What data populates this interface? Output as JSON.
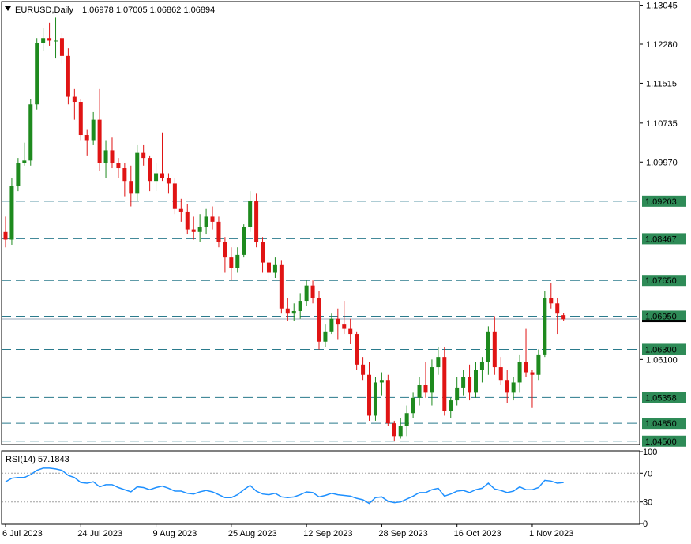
{
  "header": {
    "symbol_info": "EURUSD,Daily",
    "ohlc": "1.06978 1.07005 1.06862 1.06894"
  },
  "rsi_header": {
    "label": "RSI(14) 57.1843"
  },
  "colors": {
    "bull": "#1e8a1e",
    "bear": "#e01414",
    "level_line": "#2a7a8c",
    "level_label_bg": "#2e8b57",
    "price_label_bg": "#000000",
    "rsi_line": "#1e90ff",
    "grid_level": "#a0a0a0"
  },
  "chart_data": [
    {
      "type": "candlestick",
      "symbol": "EURUSD",
      "timeframe": "Daily",
      "ylim": [
        1.0445,
        1.131
      ],
      "y_ticks": [
        "1.13045",
        "1.12280",
        "1.11515",
        "1.10735",
        "1.09970",
        "1.06100"
      ],
      "x_tick_labels": [
        {
          "index": 0,
          "label": "6 Jul 2023"
        },
        {
          "index": 12,
          "label": "24 Jul 2023"
        },
        {
          "index": 24,
          "label": "9 Aug 2023"
        },
        {
          "index": 36,
          "label": "25 Aug 2023"
        },
        {
          "index": 48,
          "label": "12 Sep 2023"
        },
        {
          "index": 60,
          "label": "28 Sep 2023"
        },
        {
          "index": 72,
          "label": "16 Oct 2023"
        },
        {
          "index": 84,
          "label": "1 Nov 2023"
        }
      ],
      "horizontal_levels": [
        {
          "value": 1.09203,
          "label": "1.09203"
        },
        {
          "value": 1.08467,
          "label": "1.08467"
        },
        {
          "value": 1.0765,
          "label": "1.07650"
        },
        {
          "value": 1.0695,
          "label": "1.06950"
        },
        {
          "value": 1.063,
          "label": "1.06300"
        },
        {
          "value": 1.05358,
          "label": "1.05358"
        },
        {
          "value": 1.0485,
          "label": "1.04850"
        },
        {
          "value": 1.045,
          "label": "1.04500"
        }
      ],
      "current_price": {
        "value": 1.06894
      },
      "candles": [
        [
          1.086,
          1.089,
          1.083,
          1.0845
        ],
        [
          1.0845,
          1.0965,
          1.0835,
          1.095
        ],
        [
          1.095,
          1.1005,
          1.094,
          1.0995
        ],
        [
          1.0995,
          1.1035,
          1.099,
          1.1
        ],
        [
          1.1,
          1.112,
          1.099,
          1.111
        ],
        [
          1.111,
          1.124,
          1.11,
          1.123
        ],
        [
          1.123,
          1.126,
          1.1215,
          1.124
        ],
        [
          1.124,
          1.127,
          1.1225,
          1.1235
        ],
        [
          1.1235,
          1.128,
          1.12,
          1.1235
        ],
        [
          1.124,
          1.125,
          1.119,
          1.1205
        ],
        [
          1.1205,
          1.122,
          1.111,
          1.1125
        ],
        [
          1.1125,
          1.114,
          1.108,
          1.1115
        ],
        [
          1.1115,
          1.112,
          1.104,
          1.105
        ],
        [
          1.105,
          1.106,
          1.101,
          1.104
        ],
        [
          1.104,
          1.1095,
          1.103,
          1.108
        ],
        [
          1.108,
          1.114,
          1.098,
          1.0995
        ],
        [
          1.0995,
          1.104,
          1.0965,
          1.102
        ],
        [
          1.102,
          1.1045,
          1.0985,
          1.0995
        ],
        [
          1.0995,
          1.1005,
          1.0965,
          1.0985
        ],
        [
          1.0985,
          1.0995,
          1.093,
          1.096
        ],
        [
          1.096,
          1.099,
          1.091,
          1.0935
        ],
        [
          1.0935,
          1.103,
          1.092,
          1.1015
        ],
        [
          1.1015,
          1.103,
          1.099,
          1.1005
        ],
        [
          1.1005,
          1.101,
          1.094,
          1.096
        ],
        [
          1.096,
          1.0995,
          1.094,
          1.0975
        ],
        [
          1.0975,
          1.1055,
          1.096,
          1.0965
        ],
        [
          1.0965,
          1.0975,
          1.0935,
          1.0955
        ],
        [
          1.0955,
          1.0965,
          1.0895,
          1.0905
        ],
        [
          1.0905,
          1.0925,
          1.088,
          1.09
        ],
        [
          1.09,
          1.0915,
          1.0855,
          1.0865
        ],
        [
          1.0865,
          1.089,
          1.0845,
          1.086
        ],
        [
          1.086,
          1.0895,
          1.084,
          1.087
        ],
        [
          1.087,
          1.0905,
          1.0855,
          1.089
        ],
        [
          1.089,
          1.091,
          1.0865,
          1.088
        ],
        [
          1.088,
          1.089,
          1.083,
          1.084
        ],
        [
          1.084,
          1.085,
          1.078,
          1.081
        ],
        [
          1.081,
          1.083,
          1.0765,
          1.079
        ],
        [
          1.079,
          1.083,
          1.078,
          1.0815
        ],
        [
          1.0815,
          1.0875,
          1.081,
          1.087
        ],
        [
          1.087,
          1.094,
          1.086,
          1.092
        ],
        [
          1.092,
          1.0935,
          1.083,
          1.084
        ],
        [
          1.084,
          1.085,
          1.078,
          1.08
        ],
        [
          1.08,
          1.081,
          1.076,
          1.078
        ],
        [
          1.078,
          1.081,
          1.077,
          1.0795
        ],
        [
          1.0795,
          1.0805,
          1.07,
          1.071
        ],
        [
          1.071,
          1.073,
          1.0685,
          1.07
        ],
        [
          1.07,
          1.072,
          1.0685,
          1.0705
        ],
        [
          1.0705,
          1.074,
          1.069,
          1.0725
        ],
        [
          1.0725,
          1.0765,
          1.0715,
          1.0755
        ],
        [
          1.0755,
          1.0765,
          1.072,
          1.073
        ],
        [
          1.073,
          1.0745,
          1.063,
          1.0645
        ],
        [
          1.0645,
          1.068,
          1.0635,
          1.0665
        ],
        [
          1.0665,
          1.07,
          1.066,
          1.069
        ],
        [
          1.069,
          1.071,
          1.065,
          1.068
        ],
        [
          1.068,
          1.0725,
          1.066,
          1.067
        ],
        [
          1.067,
          1.069,
          1.064,
          1.066
        ],
        [
          1.066,
          1.0665,
          1.059,
          1.06
        ],
        [
          1.06,
          1.0615,
          1.057,
          1.058
        ],
        [
          1.058,
          1.0605,
          1.049,
          1.05
        ],
        [
          1.05,
          1.0575,
          1.049,
          1.0565
        ],
        [
          1.0565,
          1.0585,
          1.054,
          1.057
        ],
        [
          1.057,
          1.058,
          1.048,
          1.0485
        ],
        [
          1.0485,
          1.049,
          1.045,
          1.046
        ],
        [
          1.046,
          1.0495,
          1.0455,
          1.048
        ],
        [
          1.048,
          1.052,
          1.046,
          1.0505
        ],
        [
          1.0505,
          1.0545,
          1.0495,
          1.0535
        ],
        [
          1.0535,
          1.0575,
          1.052,
          1.056
        ],
        [
          1.056,
          1.0605,
          1.0535,
          1.0545
        ],
        [
          1.0545,
          1.061,
          1.052,
          1.0595
        ],
        [
          1.0595,
          1.0635,
          1.058,
          1.0615
        ],
        [
          1.0615,
          1.0635,
          1.05,
          1.051
        ],
        [
          1.051,
          1.0535,
          1.0495,
          1.053
        ],
        [
          1.053,
          1.0575,
          1.052,
          1.0555
        ],
        [
          1.0555,
          1.059,
          1.054,
          1.0575
        ],
        [
          1.0575,
          1.06,
          1.053,
          1.0545
        ],
        [
          1.0545,
          1.0605,
          1.0535,
          1.059
        ],
        [
          1.059,
          1.0615,
          1.0565,
          1.0605
        ],
        [
          1.0605,
          1.0675,
          1.058,
          1.0665
        ],
        [
          1.0665,
          1.0695,
          1.058,
          1.0595
        ],
        [
          1.0595,
          1.0615,
          1.056,
          1.057
        ],
        [
          1.057,
          1.059,
          1.0525,
          1.0545
        ],
        [
          1.0545,
          1.0575,
          1.053,
          1.0565
        ],
        [
          1.0565,
          1.062,
          1.0545,
          1.0605
        ],
        [
          1.0605,
          1.067,
          1.0575,
          1.0585
        ],
        [
          1.0585,
          1.059,
          1.0515,
          1.058
        ],
        [
          1.058,
          1.063,
          1.057,
          1.062
        ],
        [
          1.062,
          1.0745,
          1.0615,
          1.073
        ],
        [
          1.073,
          1.076,
          1.071,
          1.072
        ],
        [
          1.072,
          1.073,
          1.066,
          1.07
        ],
        [
          1.0697,
          1.0701,
          1.0686,
          1.0689
        ]
      ]
    },
    {
      "type": "line",
      "indicator": "RSI(14)",
      "ylim": [
        0,
        100
      ],
      "y_ticks": [
        "100",
        "70",
        "30",
        "0"
      ],
      "levels": [
        70,
        30
      ],
      "values": [
        58,
        63,
        64,
        64,
        68,
        74,
        77,
        77,
        76,
        74,
        67,
        64,
        57,
        56,
        58,
        51,
        54,
        54,
        50,
        47,
        44,
        51,
        50,
        47,
        50,
        52,
        49,
        45,
        45,
        42,
        41,
        44,
        46,
        44,
        40,
        36,
        36,
        40,
        47,
        53,
        45,
        41,
        40,
        42,
        37,
        36,
        37,
        40,
        44,
        43,
        37,
        39,
        42,
        40,
        39,
        38,
        35,
        33,
        28,
        36,
        37,
        31,
        29,
        30,
        34,
        38,
        43,
        43,
        47,
        49,
        38,
        41,
        45,
        46,
        43,
        47,
        49,
        56,
        48,
        46,
        43,
        45,
        51,
        47,
        47,
        50,
        60,
        59,
        56,
        57
      ]
    }
  ]
}
